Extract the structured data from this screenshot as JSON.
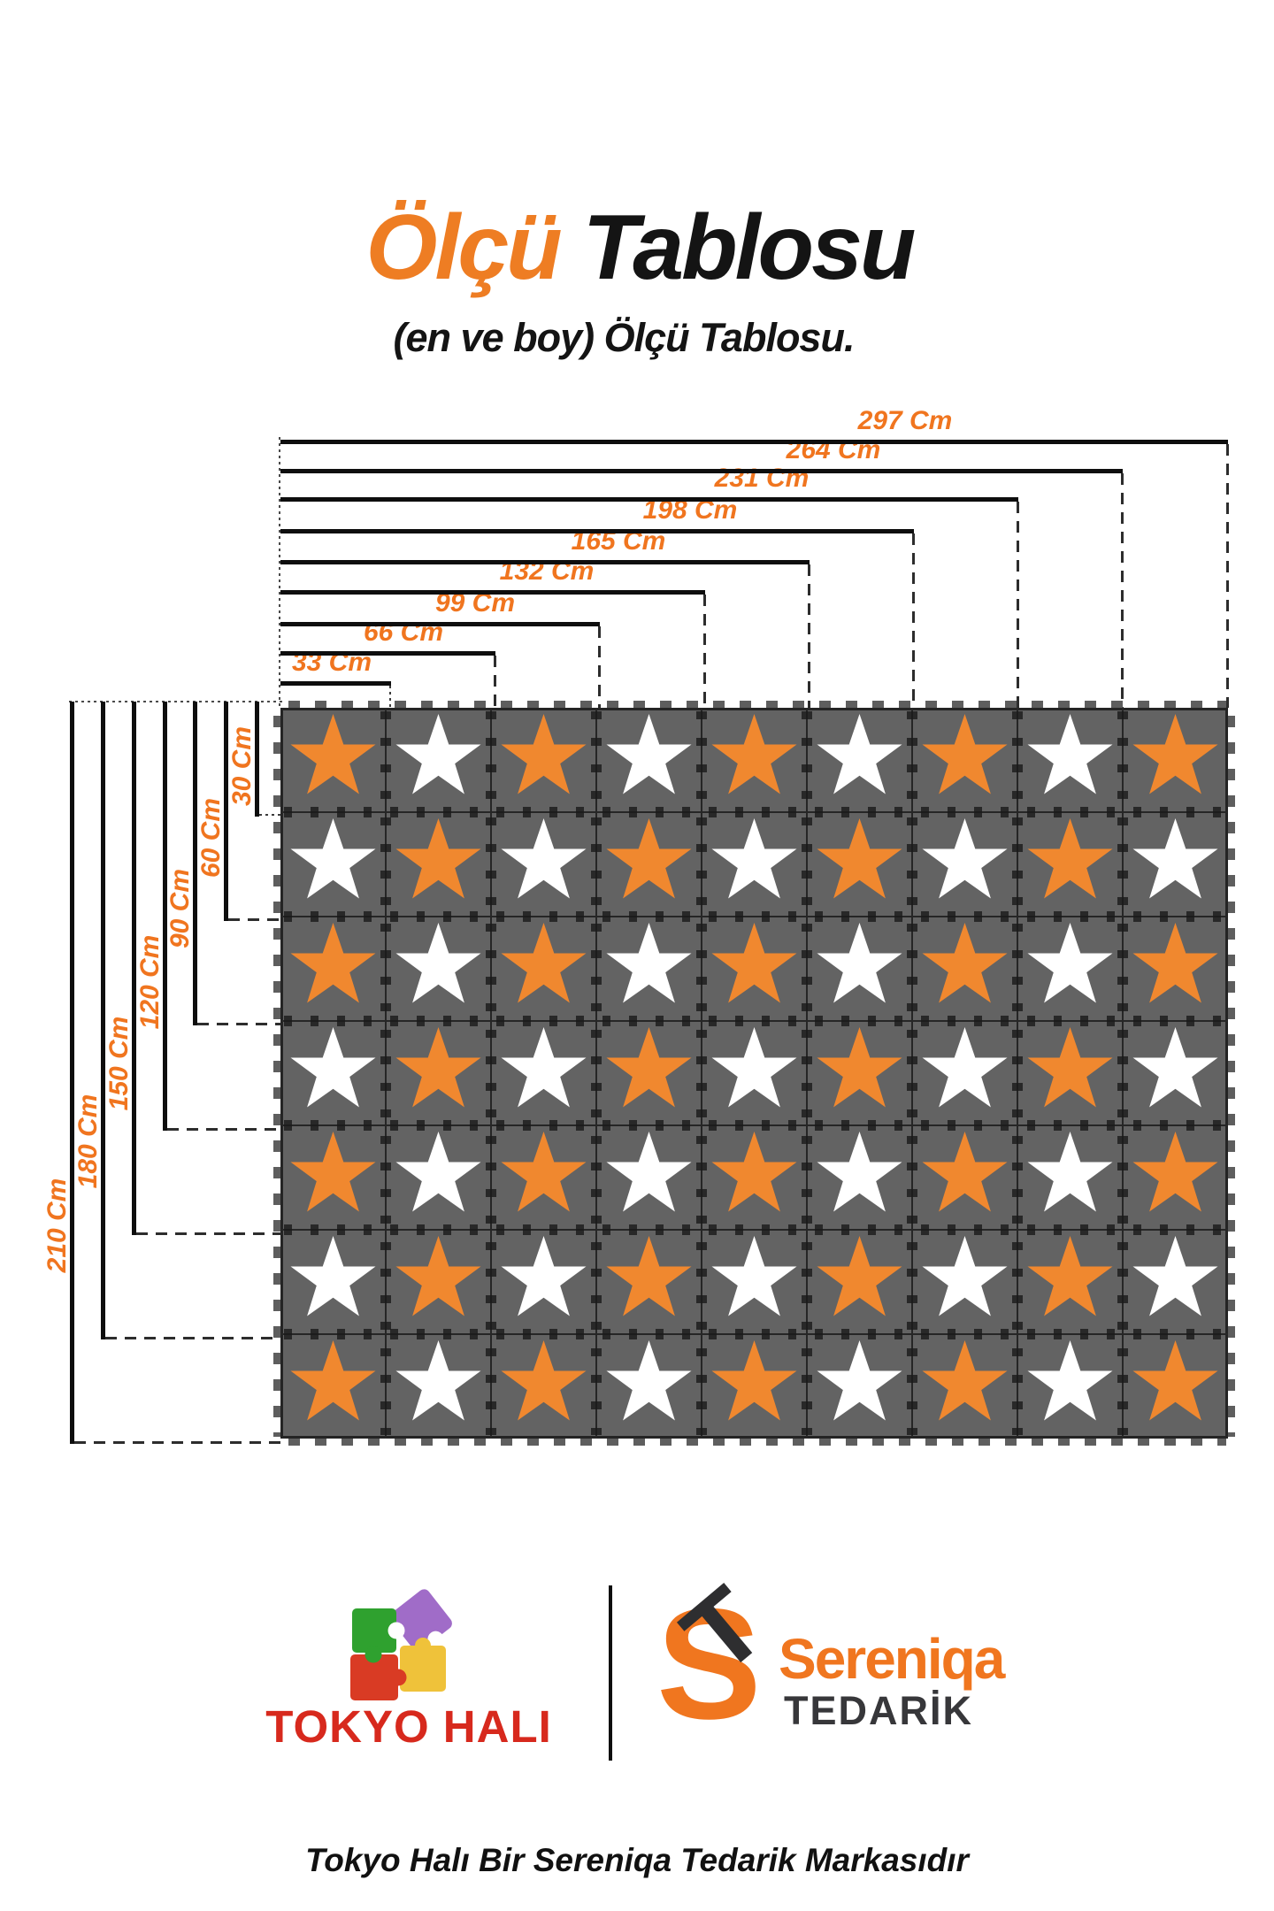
{
  "title": {
    "accent": "Ölçü",
    "rest": "Tablosu"
  },
  "subtitle": "(en ve boy) Ölçü Tablosu.",
  "diagram": {
    "unit": "Cm",
    "width_labels": [
      "33 Cm",
      "66 Cm",
      "99 Cm",
      "132 Cm",
      "165 Cm",
      "198 Cm",
      "231 Cm",
      "264 Cm",
      "297 Cm"
    ],
    "height_labels": [
      "30 Cm",
      "60 Cm",
      "90 Cm",
      "120 Cm",
      "150 Cm",
      "180 Cm",
      "210 Cm"
    ],
    "mat": {
      "rows": 7,
      "cols": 9,
      "pattern": "checkerboard",
      "first_star": "orange",
      "colors": {
        "tile": "#636363",
        "seam": "#262626",
        "star_orange": "#F0882F",
        "star_white": "#FFFFFF"
      }
    }
  },
  "branding": {
    "left": {
      "name": "TOKYO HALI",
      "colors": {
        "text": "#D7291D",
        "green": "#2FA12F",
        "purple": "#A06CC8",
        "red": "#D93B24",
        "yellow": "#EFC23A"
      }
    },
    "right": {
      "name": "Sereniqa",
      "sub": "TEDARİK",
      "colors": {
        "primary": "#F0761F",
        "dark": "#37373a"
      }
    }
  },
  "footer_note": "Tokyo Halı Bir Sereniqa Tedarik Markasıdır",
  "colors": {
    "accent": "#F0751F",
    "ink": "#141414"
  }
}
